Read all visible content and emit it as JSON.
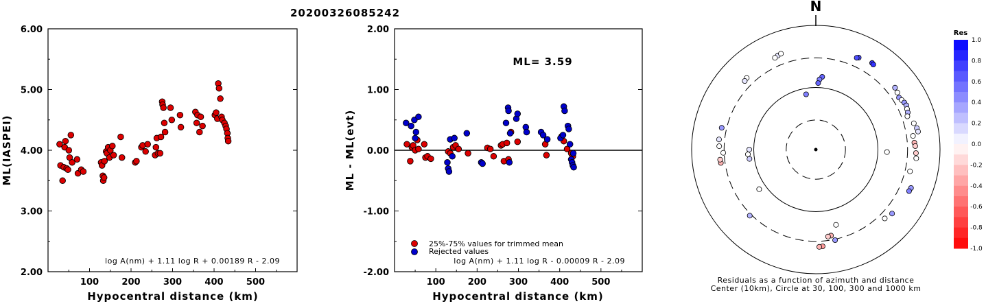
{
  "title": "20200326085242",
  "colors": {
    "accepted": "#dd0000",
    "rejected": "#0000cc",
    "axis": "#000000"
  },
  "chart_data": [
    {
      "type": "scatter",
      "xlabel": "Hypocentral distance (km)",
      "ylabel": "ML(IASPEI)",
      "xlim": [
        0,
        600
      ],
      "ylim": [
        2.0,
        6.0
      ],
      "xticks": [
        "100",
        "200",
        "300",
        "400",
        "500"
      ],
      "yticks": [
        "2.00",
        "3.00",
        "4.00",
        "5.00",
        "6.00"
      ],
      "formula": "log A(nm) + 1.11 log R + 0.00189 R - 2.09",
      "series": [
        {
          "marker": "accepted",
          "points": [
            [
              28,
              4.1
            ],
            [
              30,
              3.75
            ],
            [
              35,
              3.5
            ],
            [
              38,
              3.72
            ],
            [
              40,
              4.05
            ],
            [
              42,
              4.15
            ],
            [
              45,
              3.7
            ],
            [
              48,
              3.68
            ],
            [
              50,
              4.0
            ],
            [
              52,
              3.88
            ],
            [
              55,
              4.25
            ],
            [
              58,
              3.8
            ],
            [
              70,
              3.85
            ],
            [
              72,
              3.62
            ],
            [
              80,
              3.68
            ],
            [
              85,
              3.65
            ],
            [
              128,
              3.8
            ],
            [
              130,
              3.75
            ],
            [
              132,
              3.58
            ],
            [
              133,
              3.5
            ],
            [
              135,
              3.55
            ],
            [
              136,
              3.82
            ],
            [
              140,
              3.98
            ],
            [
              142,
              3.95
            ],
            [
              145,
              4.05
            ],
            [
              148,
              3.88
            ],
            [
              150,
              4.0
            ],
            [
              155,
              4.07
            ],
            [
              158,
              3.92
            ],
            [
              175,
              4.22
            ],
            [
              178,
              3.88
            ],
            [
              210,
              3.8
            ],
            [
              213,
              3.82
            ],
            [
              225,
              4.05
            ],
            [
              228,
              4.08
            ],
            [
              235,
              3.98
            ],
            [
              240,
              4.1
            ],
            [
              258,
              3.92
            ],
            [
              260,
              4.05
            ],
            [
              262,
              4.2
            ],
            [
              265,
              3.95
            ],
            [
              270,
              3.95
            ],
            [
              272,
              4.22
            ],
            [
              275,
              4.8
            ],
            [
              276,
              4.75
            ],
            [
              278,
              4.7
            ],
            [
              280,
              4.45
            ],
            [
              282,
              4.3
            ],
            [
              295,
              4.7
            ],
            [
              298,
              4.5
            ],
            [
              318,
              4.58
            ],
            [
              320,
              4.38
            ],
            [
              355,
              4.63
            ],
            [
              358,
              4.45
            ],
            [
              360,
              4.58
            ],
            [
              365,
              4.3
            ],
            [
              368,
              4.55
            ],
            [
              372,
              4.4
            ],
            [
              402,
              4.58
            ],
            [
              405,
              4.62
            ],
            [
              408,
              4.52
            ],
            [
              410,
              5.1
            ],
            [
              412,
              5.02
            ],
            [
              415,
              4.85
            ],
            [
              418,
              4.55
            ],
            [
              420,
              4.5
            ],
            [
              425,
              4.45
            ],
            [
              428,
              4.4
            ],
            [
              430,
              4.35
            ],
            [
              432,
              4.28
            ],
            [
              433,
              4.2
            ],
            [
              434,
              4.15
            ]
          ]
        }
      ]
    },
    {
      "type": "scatter",
      "xlabel": "Hypocentral distance (km)",
      "ylabel": "ML - ML(evt)",
      "xlim": [
        0,
        600
      ],
      "ylim": [
        -2.0,
        2.0
      ],
      "xticks": [
        "100",
        "200",
        "300",
        "400",
        "500"
      ],
      "yticks": [
        "-2.00",
        "-1.00",
        "0.00",
        "1.00",
        "2.00"
      ],
      "annotation": "ML= 3.59",
      "formula": "log A(nm) + 1.11 log R - 0.00009 R - 2.09",
      "legend": [
        {
          "label": "25%-75% values for trimmed mean",
          "marker": "accepted"
        },
        {
          "label": "Rejected values",
          "marker": "rejected"
        }
      ],
      "series": [
        {
          "marker": "accepted",
          "points": [
            [
              30,
              0.1
            ],
            [
              38,
              -0.18
            ],
            [
              42,
              0.05
            ],
            [
              45,
              0.08
            ],
            [
              50,
              0.0
            ],
            [
              55,
              0.17
            ],
            [
              58,
              0.02
            ],
            [
              72,
              0.1
            ],
            [
              75,
              -0.12
            ],
            [
              80,
              -0.1
            ],
            [
              88,
              -0.14
            ],
            [
              130,
              -0.02
            ],
            [
              135,
              -0.05
            ],
            [
              142,
              0.05
            ],
            [
              148,
              0.08
            ],
            [
              155,
              0.02
            ],
            [
              178,
              -0.05
            ],
            [
              225,
              0.04
            ],
            [
              232,
              0.02
            ],
            [
              240,
              -0.1
            ],
            [
              258,
              0.08
            ],
            [
              262,
              0.1
            ],
            [
              265,
              -0.18
            ],
            [
              272,
              0.12
            ],
            [
              276,
              -0.15
            ],
            [
              282,
              0.3
            ],
            [
              298,
              0.14
            ],
            [
              365,
              0.1
            ],
            [
              368,
              -0.08
            ],
            [
              405,
              0.23
            ],
            [
              410,
              0.15
            ],
            [
              418,
              0.02
            ],
            [
              428,
              -0.05
            ],
            [
              432,
              -0.1
            ]
          ]
        },
        {
          "marker": "rejected",
          "points": [
            [
              28,
              0.45
            ],
            [
              40,
              0.4
            ],
            [
              48,
              0.5
            ],
            [
              58,
              0.55
            ],
            [
              52,
              0.3
            ],
            [
              50,
              0.2
            ],
            [
              128,
              -0.2
            ],
            [
              130,
              -0.3
            ],
            [
              132,
              -0.35
            ],
            [
              135,
              0.18
            ],
            [
              145,
              0.2
            ],
            [
              140,
              -0.1
            ],
            [
              175,
              0.28
            ],
            [
              210,
              -0.2
            ],
            [
              213,
              -0.22
            ],
            [
              270,
              0.45
            ],
            [
              275,
              0.7
            ],
            [
              276,
              0.65
            ],
            [
              280,
              0.28
            ],
            [
              278,
              -0.2
            ],
            [
              295,
              0.52
            ],
            [
              298,
              0.6
            ],
            [
              318,
              0.38
            ],
            [
              320,
              0.3
            ],
            [
              355,
              0.3
            ],
            [
              360,
              0.25
            ],
            [
              370,
              0.18
            ],
            [
              402,
              0.2
            ],
            [
              408,
              0.25
            ],
            [
              410,
              0.72
            ],
            [
              412,
              0.65
            ],
            [
              420,
              0.4
            ],
            [
              422,
              0.35
            ],
            [
              425,
              0.1
            ],
            [
              428,
              -0.15
            ],
            [
              430,
              -0.2
            ],
            [
              432,
              -0.25
            ],
            [
              434,
              -0.28
            ],
            [
              433,
              -0.05
            ]
          ]
        }
      ]
    },
    {
      "type": "polar-scatter",
      "north_label": "N",
      "caption_line1": "Residuals as a function of azimuth and distance",
      "caption_line2": "Center (10km), Circle at 30, 100, 300 and 1000 km",
      "rings_km": [
        30,
        100,
        300,
        1000
      ],
      "colorbar": {
        "title": "Res",
        "ticks": [
          "1.0",
          "0.8",
          "0.6",
          "0.4",
          "0.2",
          "0.0",
          "-0.2",
          "-0.4",
          "-0.6",
          "-0.8",
          "-1.0"
        ],
        "min": -1.0,
        "max": 1.0
      },
      "points": [
        {
          "az": 338,
          "dist": 430,
          "res": 0.1
        },
        {
          "az": 340,
          "dist": 440,
          "res": 0.0
        },
        {
          "az": 336,
          "dist": 415,
          "res": 0.0
        },
        {
          "az": 316,
          "dist": 400,
          "res": 0.0
        },
        {
          "az": 314,
          "dist": 390,
          "res": 0.1
        },
        {
          "az": 25,
          "dist": 430,
          "res": 0.7
        },
        {
          "az": 24,
          "dist": 415,
          "res": 0.7
        },
        {
          "az": 33,
          "dist": 460,
          "res": 0.8
        },
        {
          "az": 34,
          "dist": 450,
          "res": 0.8
        },
        {
          "az": 52,
          "dist": 415,
          "res": 0.3
        },
        {
          "az": 55,
          "dist": 400,
          "res": 0.0
        },
        {
          "az": 58,
          "dist": 380,
          "res": 0.4
        },
        {
          "az": 60,
          "dist": 395,
          "res": 0.0
        },
        {
          "az": 62,
          "dist": 410,
          "res": 0.4
        },
        {
          "az": 64,
          "dist": 420,
          "res": 0.3
        },
        {
          "az": 66,
          "dist": 405,
          "res": 0.0
        },
        {
          "az": 68,
          "dist": 395,
          "res": 0.3
        },
        {
          "az": 70,
          "dist": 370,
          "res": 0.0
        },
        {
          "az": 75,
          "dist": 430,
          "res": 0.0
        },
        {
          "az": 78,
          "dist": 460,
          "res": 0.2
        },
        {
          "az": 80,
          "dist": 470,
          "res": 0.1
        },
        {
          "az": 82,
          "dist": 380,
          "res": 0.0
        },
        {
          "az": 86,
          "dist": 390,
          "res": -0.3
        },
        {
          "az": 88,
          "dist": 400,
          "res": -0.2
        },
        {
          "az": 92,
          "dist": 410,
          "res": -0.2
        },
        {
          "az": 95,
          "dist": 420,
          "res": 0.0
        },
        {
          "az": 103,
          "dist": 360,
          "res": 0.0
        },
        {
          "az": 112,
          "dist": 450,
          "res": 0.4
        },
        {
          "az": 114,
          "dist": 440,
          "res": 0.5
        },
        {
          "az": 130,
          "dist": 400,
          "res": 0.4
        },
        {
          "az": 135,
          "dist": 370,
          "res": 0.0
        },
        {
          "az": 165,
          "dist": 180,
          "res": 0.0
        },
        {
          "az": 170,
          "dist": 255,
          "res": -0.3
        },
        {
          "az": 172,
          "dist": 260,
          "res": -0.2
        },
        {
          "az": 168,
          "dist": 310,
          "res": 0.4
        },
        {
          "az": 176,
          "dist": 365,
          "res": -0.4
        },
        {
          "az": 178,
          "dist": 370,
          "res": -0.3
        },
        {
          "az": 235,
          "dist": 130,
          "res": 0.0
        },
        {
          "az": 262,
          "dist": 350,
          "res": -0.3
        },
        {
          "az": 264,
          "dist": 355,
          "res": -0.2
        },
        {
          "az": 268,
          "dist": 310,
          "res": 0.0
        },
        {
          "az": 272,
          "dist": 360,
          "res": 0.0
        },
        {
          "az": 276,
          "dist": 370,
          "res": 0.1
        },
        {
          "az": 262,
          "dist": 120,
          "res": 0.2
        },
        {
          "az": 266,
          "dist": 125,
          "res": 0.0
        },
        {
          "az": 270,
          "dist": 118,
          "res": 0.1
        },
        {
          "az": 92,
          "dist": 140,
          "res": 0.0
        },
        {
          "az": 5,
          "dist": 150,
          "res": 0.6
        },
        {
          "az": 3,
          "dist": 135,
          "res": 0.5
        },
        {
          "az": 2,
          "dist": 118,
          "res": 0.6
        },
        {
          "az": 350,
          "dist": 80,
          "res": 0.5
        },
        {
          "az": 283,
          "dist": 360,
          "res": 0.4
        },
        {
          "az": 225,
          "dist": 320,
          "res": 0.3
        }
      ]
    }
  ]
}
